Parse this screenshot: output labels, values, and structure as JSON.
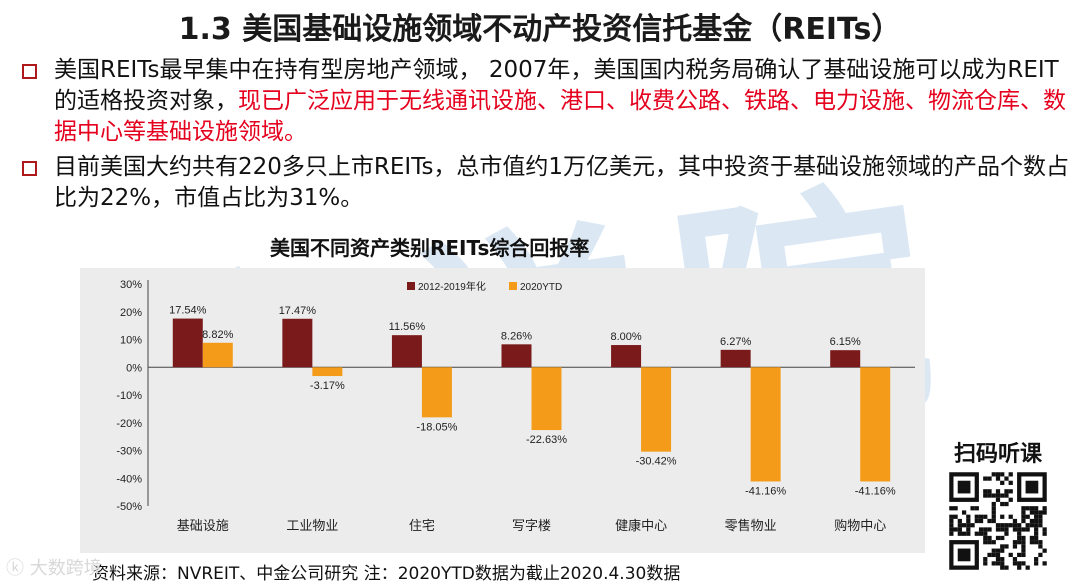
{
  "title": "1.3 美国基础设施领域不动产投资信托基金（REITs）",
  "bullets": [
    {
      "text": "美国REITs最早集中在持有型房地产领域， 2007年，美国国内税务局确认了基础设施可以成为REIT的适格投资对象，",
      "highlight": "现已广泛应用于无线通讯设施、港口、收费公路、铁路、电力设施、物流仓库、数据中心等基础设施领域。"
    },
    {
      "text": "目前美国大约共有220多只上市REITs，总市值约1万亿美元，其中投资于基础设施领域的产品个数占比为22%，市值占比为31%。",
      "highlight": ""
    }
  ],
  "watermark": "房学院",
  "source": "资料来源：NVREIT、中金公司研究    注：2020YTD数据为截止2020.4.30数据",
  "qr_label": "扫码听课",
  "logo_text": "大数跨境",
  "colors": {
    "series1": "#7a1a1a",
    "series2": "#f59b1a",
    "highlight": "#e5001e",
    "box": "#b01919"
  },
  "chart_data": {
    "type": "bar",
    "title": "美国不同资产类别REITs综合回报率",
    "categories": [
      "基础设施",
      "工业物业",
      "住宅",
      "写字楼",
      "健康中心",
      "零售物业",
      "购物中心"
    ],
    "series": [
      {
        "name": "2012-2019年化",
        "values": [
          17.54,
          17.47,
          11.56,
          8.26,
          8.0,
          6.27,
          6.15
        ],
        "labels": [
          "17.54%",
          "17.47%",
          "11.56%",
          "8.26%",
          "8.00%",
          "6.27%",
          "6.15%"
        ]
      },
      {
        "name": "2020YTD",
        "values": [
          8.82,
          -3.17,
          -18.05,
          -22.63,
          -30.42,
          -41.16,
          -41.16
        ],
        "labels": [
          "8.82%",
          "-3.17%",
          "-18.05%",
          "-22.63%",
          "-30.42%",
          "-41.16%",
          "-41.16%"
        ]
      }
    ],
    "ylim": [
      -50,
      30
    ],
    "yticks": [
      30,
      20,
      10,
      0,
      -10,
      -20,
      -30,
      -40,
      -50
    ],
    "ytick_labels": [
      "30%",
      "20%",
      "10%",
      "0%",
      "-10%",
      "-20%",
      "-30%",
      "-40%",
      "-50%"
    ],
    "legend_position": "top",
    "grid": false
  }
}
